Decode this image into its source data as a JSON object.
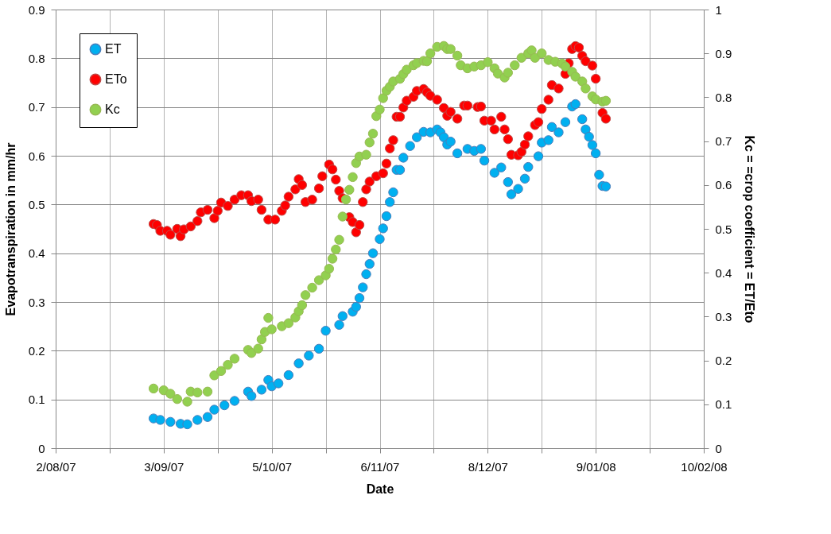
{
  "chart_data": {
    "type": "scatter",
    "xlabel": "Date",
    "ylabel": "Evapotranspiration in mm/hr",
    "y2label": "Kc = =crop coefficient = ET/Eto",
    "xlim": [
      "2007-08-02",
      "2008-02-10"
    ],
    "xticks": [
      {
        "value": "2007-08-02",
        "label": "2/08/07"
      },
      {
        "value": "2007-08-18",
        "label": null
      },
      {
        "value": "2007-09-03",
        "label": "3/09/07"
      },
      {
        "value": "2007-09-19",
        "label": null
      },
      {
        "value": "2007-10-05",
        "label": "5/10/07"
      },
      {
        "value": "2007-10-21",
        "label": null
      },
      {
        "value": "2007-11-06",
        "label": "6/11/07"
      },
      {
        "value": "2007-11-22",
        "label": null
      },
      {
        "value": "2007-12-08",
        "label": "8/12/07"
      },
      {
        "value": "2007-12-24",
        "label": null
      },
      {
        "value": "2008-01-09",
        "label": "9/01/08"
      },
      {
        "value": "2008-01-25",
        "label": null
      },
      {
        "value": "2008-02-10",
        "label": "10/02/08"
      }
    ],
    "ylim": [
      0,
      0.9
    ],
    "yticks": [
      0,
      0.1,
      0.2,
      0.3,
      0.4,
      0.5,
      0.6,
      0.7,
      0.8,
      0.9
    ],
    "y2lim": [
      0,
      1
    ],
    "y2ticks": [
      0,
      0.1,
      0.2,
      0.3,
      0.4,
      0.5,
      0.6,
      0.7,
      0.8,
      0.9,
      1
    ],
    "grid": true,
    "legend": "top left",
    "marker": "circle",
    "series": [
      {
        "name": "ET",
        "color": "#00b0f0",
        "x": [
          "2007-08-31",
          "2007-09-02",
          "2007-09-05",
          "2007-09-08",
          "2007-09-10",
          "2007-09-13",
          "2007-09-16",
          "2007-09-18",
          "2007-09-21",
          "2007-09-24",
          "2007-09-28",
          "2007-09-29",
          "2007-10-02",
          "2007-10-04",
          "2007-10-05",
          "2007-10-07",
          "2007-10-10",
          "2007-10-13",
          "2007-10-16",
          "2007-10-19",
          "2007-10-21",
          "2007-10-25",
          "2007-10-26",
          "2007-10-29",
          "2007-10-30",
          "2007-10-31",
          "2007-11-01",
          "2007-11-02",
          "2007-11-03",
          "2007-11-04",
          "2007-11-06",
          "2007-11-07",
          "2007-11-08",
          "2007-11-09",
          "2007-11-10",
          "2007-11-11",
          "2007-11-12",
          "2007-11-13",
          "2007-11-15",
          "2007-11-17",
          "2007-11-19",
          "2007-11-21",
          "2007-11-23",
          "2007-11-24",
          "2007-11-25",
          "2007-11-26",
          "2007-11-27",
          "2007-11-29",
          "2007-12-02",
          "2007-12-04",
          "2007-12-06",
          "2007-12-07",
          "2007-12-10",
          "2007-12-12",
          "2007-12-14",
          "2007-12-15",
          "2007-12-17",
          "2007-12-19",
          "2007-12-20",
          "2007-12-23",
          "2007-12-24",
          "2007-12-26",
          "2007-12-27",
          "2007-12-29",
          "2007-12-31",
          "2008-01-02",
          "2008-01-03",
          "2008-01-05",
          "2008-01-06",
          "2008-01-07",
          "2008-01-08",
          "2008-01-09",
          "2008-01-10",
          "2008-01-11",
          "2008-01-12"
        ],
        "values": [
          0.061,
          0.058,
          0.054,
          0.05,
          0.049,
          0.058,
          0.064,
          0.079,
          0.088,
          0.097,
          0.116,
          0.107,
          0.12,
          0.14,
          0.127,
          0.133,
          0.15,
          0.174,
          0.19,
          0.204,
          0.241,
          0.253,
          0.271,
          0.28,
          0.29,
          0.308,
          0.33,
          0.357,
          0.378,
          0.4,
          0.429,
          0.451,
          0.476,
          0.505,
          0.525,
          0.571,
          0.571,
          0.596,
          0.62,
          0.638,
          0.649,
          0.648,
          0.654,
          0.648,
          0.638,
          0.623,
          0.629,
          0.605,
          0.614,
          0.61,
          0.614,
          0.59,
          0.565,
          0.576,
          0.546,
          0.521,
          0.532,
          0.553,
          0.577,
          0.599,
          0.627,
          0.632,
          0.659,
          0.648,
          0.669,
          0.701,
          0.706,
          0.675,
          0.654,
          0.639,
          0.622,
          0.605,
          0.561,
          0.538,
          0.537
        ]
      },
      {
        "name": "ETo",
        "color": "#ff0000",
        "x": [
          "2007-08-31",
          "2007-09-01",
          "2007-09-02",
          "2007-09-04",
          "2007-09-05",
          "2007-09-07",
          "2007-09-08",
          "2007-09-09",
          "2007-09-11",
          "2007-09-13",
          "2007-09-14",
          "2007-09-16",
          "2007-09-18",
          "2007-09-19",
          "2007-09-20",
          "2007-09-22",
          "2007-09-24",
          "2007-09-26",
          "2007-09-28",
          "2007-09-29",
          "2007-10-01",
          "2007-10-02",
          "2007-10-04",
          "2007-10-06",
          "2007-10-08",
          "2007-10-09",
          "2007-10-10",
          "2007-10-12",
          "2007-10-13",
          "2007-10-14",
          "2007-10-15",
          "2007-10-17",
          "2007-10-19",
          "2007-10-20",
          "2007-10-22",
          "2007-10-23",
          "2007-10-24",
          "2007-10-25",
          "2007-10-26",
          "2007-10-28",
          "2007-10-29",
          "2007-10-30",
          "2007-10-31",
          "2007-11-01",
          "2007-11-02",
          "2007-11-03",
          "2007-11-05",
          "2007-11-07",
          "2007-11-08",
          "2007-11-09",
          "2007-11-10",
          "2007-11-11",
          "2007-11-12",
          "2007-11-13",
          "2007-11-14",
          "2007-11-16",
          "2007-11-17",
          "2007-11-19",
          "2007-11-20",
          "2007-11-21",
          "2007-11-23",
          "2007-11-25",
          "2007-11-26",
          "2007-11-27",
          "2007-11-29",
          "2007-12-01",
          "2007-12-02",
          "2007-12-05",
          "2007-12-06",
          "2007-12-07",
          "2007-12-09",
          "2007-12-10",
          "2007-12-12",
          "2007-12-13",
          "2007-12-14",
          "2007-12-15",
          "2007-12-17",
          "2007-12-18",
          "2007-12-19",
          "2007-12-20",
          "2007-12-22",
          "2007-12-23",
          "2007-12-24",
          "2007-12-26",
          "2007-12-27",
          "2007-12-29",
          "2007-12-31",
          "2008-01-01",
          "2008-01-02",
          "2008-01-03",
          "2008-01-04",
          "2008-01-05",
          "2008-01-06",
          "2008-01-08",
          "2008-01-09",
          "2008-01-11",
          "2008-01-12"
        ],
        "values": [
          0.46,
          0.458,
          0.446,
          0.446,
          0.438,
          0.45,
          0.435,
          0.449,
          0.455,
          0.466,
          0.484,
          0.489,
          0.472,
          0.487,
          0.504,
          0.497,
          0.51,
          0.519,
          0.519,
          0.507,
          0.51,
          0.489,
          0.469,
          0.469,
          0.487,
          0.498,
          0.516,
          0.531,
          0.552,
          0.54,
          0.505,
          0.51,
          0.533,
          0.558,
          0.582,
          0.572,
          0.551,
          0.528,
          0.513,
          0.474,
          0.464,
          0.443,
          0.458,
          0.505,
          0.531,
          0.547,
          0.558,
          0.564,
          0.584,
          0.615,
          0.632,
          0.68,
          0.68,
          0.699,
          0.713,
          0.721,
          0.733,
          0.737,
          0.73,
          0.723,
          0.715,
          0.698,
          0.682,
          0.69,
          0.676,
          0.703,
          0.703,
          0.7,
          0.701,
          0.672,
          0.672,
          0.654,
          0.68,
          0.654,
          0.634,
          0.602,
          0.601,
          0.608,
          0.623,
          0.64,
          0.663,
          0.669,
          0.696,
          0.715,
          0.745,
          0.738,
          0.768,
          0.79,
          0.819,
          0.825,
          0.822,
          0.805,
          0.794,
          0.785,
          0.758,
          0.688,
          0.676
        ]
      },
      {
        "name": "Kc",
        "color": "#92d050",
        "axis": "y2",
        "x": [
          "2007-08-31",
          "2007-09-03",
          "2007-09-05",
          "2007-09-07",
          "2007-09-10",
          "2007-09-11",
          "2007-09-13",
          "2007-09-16",
          "2007-09-18",
          "2007-09-20",
          "2007-09-22",
          "2007-09-24",
          "2007-09-28",
          "2007-09-29",
          "2007-10-01",
          "2007-10-02",
          "2007-10-03",
          "2007-10-04",
          "2007-10-05",
          "2007-10-08",
          "2007-10-10",
          "2007-10-12",
          "2007-10-13",
          "2007-10-14",
          "2007-10-15",
          "2007-10-17",
          "2007-10-19",
          "2007-10-21",
          "2007-10-22",
          "2007-10-23",
          "2007-10-24",
          "2007-10-25",
          "2007-10-26",
          "2007-10-27",
          "2007-10-28",
          "2007-10-29",
          "2007-10-30",
          "2007-10-31",
          "2007-11-02",
          "2007-11-03",
          "2007-11-04",
          "2007-11-05",
          "2007-11-06",
          "2007-11-07",
          "2007-11-08",
          "2007-11-09",
          "2007-11-10",
          "2007-11-12",
          "2007-11-13",
          "2007-11-14",
          "2007-11-16",
          "2007-11-17",
          "2007-11-19",
          "2007-11-20",
          "2007-11-21",
          "2007-11-23",
          "2007-11-25",
          "2007-11-26",
          "2007-11-27",
          "2007-11-29",
          "2007-11-30",
          "2007-12-02",
          "2007-12-04",
          "2007-12-06",
          "2007-12-08",
          "2007-12-10",
          "2007-12-11",
          "2007-12-13",
          "2007-12-14",
          "2007-12-16",
          "2007-12-18",
          "2007-12-20",
          "2007-12-21",
          "2007-12-22",
          "2007-12-24",
          "2007-12-26",
          "2007-12-28",
          "2007-12-30",
          "2007-12-31",
          "2008-01-02",
          "2008-01-03",
          "2008-01-05",
          "2008-01-06",
          "2008-01-08",
          "2008-01-09",
          "2008-01-11",
          "2008-01-12"
        ],
        "values": [
          0.136,
          0.132,
          0.124,
          0.112,
          0.106,
          0.129,
          0.127,
          0.129,
          0.166,
          0.176,
          0.19,
          0.204,
          0.224,
          0.217,
          0.227,
          0.248,
          0.265,
          0.297,
          0.271,
          0.278,
          0.285,
          0.298,
          0.312,
          0.326,
          0.349,
          0.366,
          0.383,
          0.394,
          0.409,
          0.432,
          0.453,
          0.475,
          0.528,
          0.567,
          0.589,
          0.618,
          0.65,
          0.665,
          0.669,
          0.697,
          0.717,
          0.757,
          0.772,
          0.798,
          0.815,
          0.824,
          0.836,
          0.842,
          0.853,
          0.863,
          0.873,
          0.878,
          0.883,
          0.882,
          0.9,
          0.915,
          0.917,
          0.91,
          0.91,
          0.895,
          0.873,
          0.866,
          0.87,
          0.873,
          0.88,
          0.866,
          0.854,
          0.845,
          0.856,
          0.873,
          0.89,
          0.9,
          0.907,
          0.89,
          0.9,
          0.885,
          0.881,
          0.877,
          0.87,
          0.858,
          0.847,
          0.836,
          0.82,
          0.802,
          0.795,
          0.79,
          0.792
        ]
      }
    ]
  }
}
